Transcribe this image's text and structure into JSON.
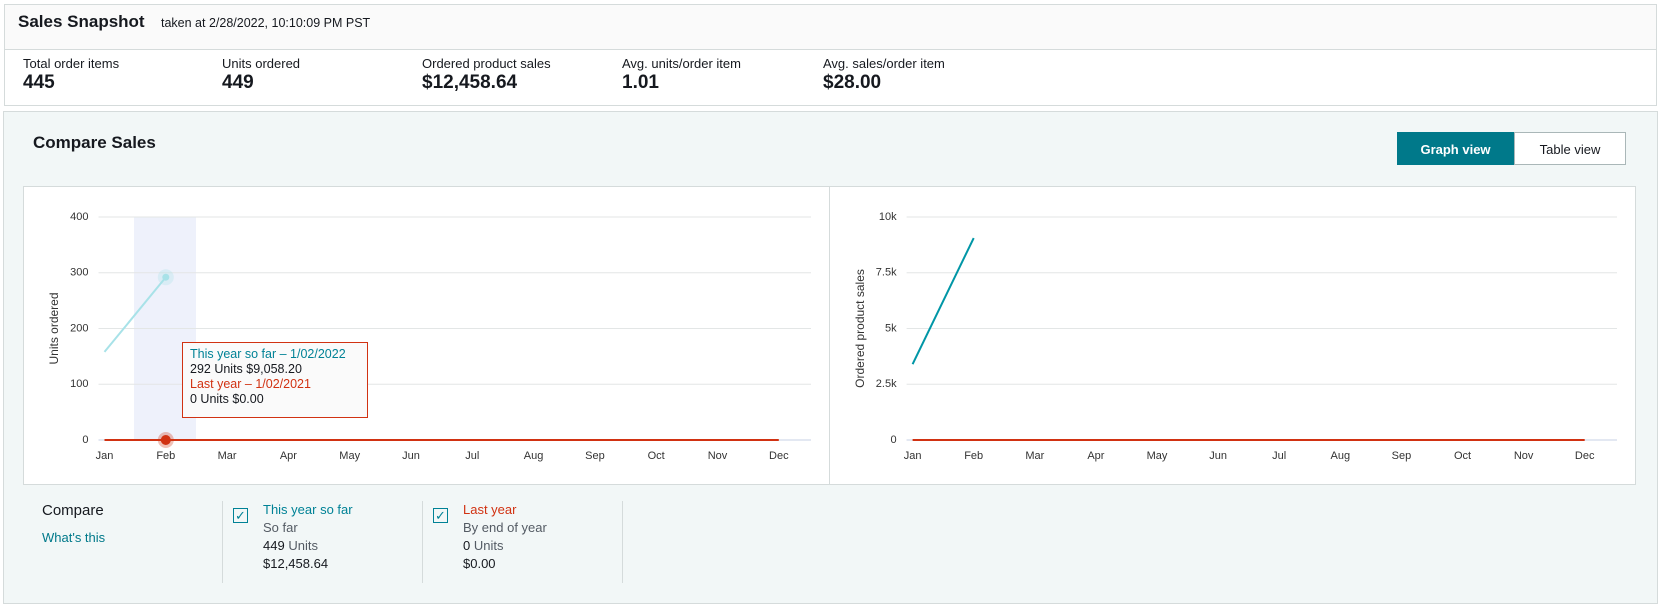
{
  "header": {
    "title": "Sales Snapshot",
    "timestamp": "taken at 2/28/2022, 10:10:09 PM PST"
  },
  "metrics": [
    {
      "label": "Total order items",
      "value": "445"
    },
    {
      "label": "Units ordered",
      "value": "449"
    },
    {
      "label": "Ordered product sales",
      "value": "$12,458.64"
    },
    {
      "label": "Avg. units/order item",
      "value": "1.01"
    },
    {
      "label": "Avg. sales/order item",
      "value": "$28.00"
    }
  ],
  "compare_sales": {
    "title": "Compare Sales",
    "buttons": [
      "Graph view",
      "Table view"
    ]
  },
  "chart_data": [
    {
      "type": "line",
      "ylabel": "Units ordered",
      "categories": [
        "Jan",
        "Feb",
        "Mar",
        "Apr",
        "May",
        "Jun",
        "Jul",
        "Aug",
        "Sep",
        "Oct",
        "Nov",
        "Dec"
      ],
      "ylim": [
        0,
        400
      ],
      "yticks": [
        0,
        100,
        200,
        300,
        400
      ],
      "grid": true,
      "series": [
        {
          "name": "This year so far",
          "color": "#a8e2e8",
          "values": [
            158,
            292,
            null,
            null,
            null,
            null,
            null,
            null,
            null,
            null,
            null,
            null
          ]
        },
        {
          "name": "Last year",
          "color": "#d13212",
          "values": [
            0,
            0,
            0,
            0,
            0,
            0,
            0,
            0,
            0,
            0,
            0,
            0
          ]
        }
      ]
    },
    {
      "type": "line",
      "ylabel": "Ordered product sales",
      "categories": [
        "Jan",
        "Feb",
        "Mar",
        "Apr",
        "May",
        "Jun",
        "Jul",
        "Aug",
        "Sep",
        "Oct",
        "Nov",
        "Dec"
      ],
      "ylim": [
        0,
        10000
      ],
      "yticks": [
        0,
        {
          "value": 2500,
          "label": "2.5k"
        },
        {
          "value": 5000,
          "label": "5k"
        },
        {
          "value": 7500,
          "label": "7.5k"
        },
        {
          "value": 10000,
          "label": "10k"
        }
      ],
      "grid": true,
      "series": [
        {
          "color": "#0096a6",
          "values": [
            3400,
            9058.2,
            null,
            null,
            null,
            null,
            null,
            null,
            null,
            null,
            null,
            null
          ]
        },
        {
          "color": "#d13212",
          "values": [
            0,
            0,
            0,
            0,
            0,
            0,
            0,
            0,
            0,
            0,
            0,
            0
          ]
        }
      ]
    }
  ],
  "tooltip": {
    "this_year_label": "This year so far – 1/02/2022",
    "this_year_detail": "292 Units $9,058.20",
    "last_year_label": "Last year – 1/02/2021",
    "last_year_detail": "0 Units $0.00"
  },
  "compare": {
    "title": "Compare",
    "link": "What's this",
    "items": [
      {
        "period": "So far",
        "units": "449",
        "units_label": "Units",
        "sales": "$12,458.64"
      },
      {
        "period": "By end of year",
        "units": "0",
        "units_label": "Units",
        "sales": "$0.00"
      }
    ]
  }
}
